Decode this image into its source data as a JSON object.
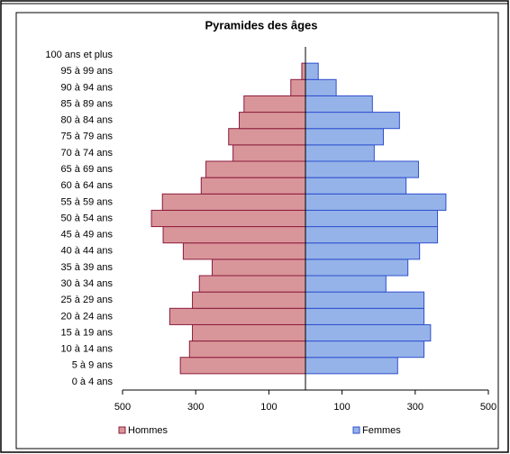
{
  "chart_data": {
    "type": "pyramid",
    "title": "Pyramides des âges",
    "categories": [
      "0 à 4 ans",
      "5 à 9 ans",
      "10 à 14 ans",
      "15 à 19 ans",
      "20 à 24 ans",
      "25 à 29 ans",
      "30 à 34 ans",
      "35 à 39 ans",
      "40 à 44 ans",
      "45 à 49 ans",
      "50 à 54 ans",
      "55 à 59 ans",
      "60 à 64 ans",
      "65 à 69 ans",
      "70 à 74 ans",
      "75 à 79 ans",
      "80 à 84 ans",
      "85 à 89 ans",
      "90 à 94 ans",
      "95 à 99 ans",
      "100 ans et plus"
    ],
    "series": [
      {
        "name": "Hommes",
        "color": "#d9969a",
        "edge": "#8b1c3c",
        "values": [
          0,
          -342,
          -317,
          -309,
          -371,
          -309,
          -290,
          -255,
          -334,
          -389,
          -421,
          -391,
          -285,
          -272,
          -198,
          -210,
          -181,
          -168,
          -40,
          -10,
          0
        ]
      },
      {
        "name": "Femmes",
        "color": "#95b3e8",
        "edge": "#3050d0",
        "values": [
          0,
          252,
          324,
          342,
          324,
          324,
          220,
          280,
          312,
          361,
          361,
          384,
          275,
          309,
          188,
          213,
          257,
          183,
          84,
          35,
          0
        ]
      }
    ],
    "xlim": [
      -500,
      500
    ],
    "xticks": [
      {
        "value": -500,
        "label": "500"
      },
      {
        "value": -300,
        "label": "300"
      },
      {
        "value": -100,
        "label": "100"
      },
      100,
      300,
      500
    ],
    "legend": "bottom"
  }
}
